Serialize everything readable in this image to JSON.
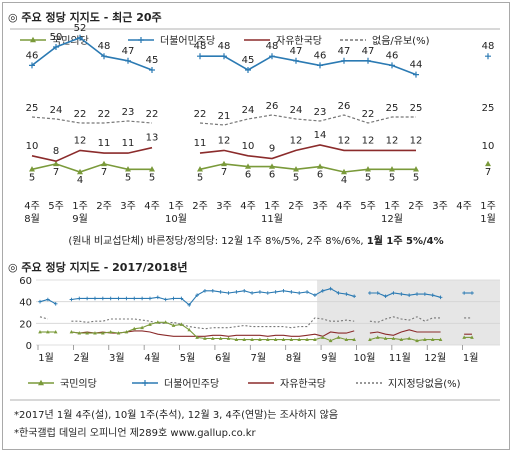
{
  "section1": {
    "title": "◎  주요 정당 지지도 - 최근 20주",
    "note_prefix": "(원내 비교섭단체) 바른정당/정의당: 12월 1주 8%/5%, 2주 8%/6%, ",
    "note_bold": "1월 1주 5%/4%"
  },
  "section2": {
    "title": "◎  주요 정당 지지도 - 2017/2018년"
  },
  "footer": {
    "line1": "*2017년 1월 4주(설), 10월 1주(추석), 12월 3, 4주(연말)는 조사하지 않음",
    "line2": "*한국갤럽 데일리 오피니언 제289호 www.gallup.co.kr"
  },
  "chart_data": [
    {
      "type": "line",
      "title": "주요 정당 지지도 - 최근 20주",
      "categories_top": [
        "4주",
        "5주",
        "1주",
        "2주",
        "3주",
        "4주",
        "1주",
        "2주",
        "3주",
        "4주",
        "1주",
        "2주",
        "3주",
        "4주",
        "5주",
        "1주",
        "2주",
        "3주",
        "4주",
        "1주"
      ],
      "categories_bottom": [
        "8월",
        "",
        "9월",
        "",
        "",
        "",
        "10월",
        "",
        "",
        "",
        "11월",
        "",
        "",
        "",
        "",
        "12월",
        "",
        "",
        "",
        "1월"
      ],
      "series": [
        {
          "name": "국민의당",
          "color": "#7a9a3a",
          "marker": "triangle",
          "values": [
            5,
            7,
            4,
            7,
            5,
            5,
            null,
            5,
            7,
            6,
            6,
            5,
            6,
            4,
            5,
            5,
            5,
            null,
            null,
            7
          ]
        },
        {
          "name": "더불어민주당",
          "color": "#2b7ab3",
          "marker": "plus",
          "values": [
            46,
            50,
            52,
            48,
            47,
            45,
            null,
            48,
            48,
            45,
            48,
            47,
            46,
            47,
            47,
            46,
            44,
            null,
            null,
            48
          ]
        },
        {
          "name": "자유한국당",
          "color": "#8b2b2b",
          "marker": "none",
          "values": [
            10,
            8,
            12,
            11,
            11,
            13,
            null,
            11,
            12,
            10,
            9,
            12,
            14,
            12,
            12,
            12,
            12,
            null,
            null,
            10
          ]
        },
        {
          "name": "없음/유보(%)",
          "color": "#777777",
          "marker": "dashed",
          "values": [
            25,
            24,
            22,
            22,
            23,
            22,
            null,
            22,
            21,
            24,
            26,
            24,
            23,
            26,
            22,
            25,
            25,
            null,
            null,
            25
          ]
        }
      ]
    },
    {
      "type": "line",
      "title": "주요 정당 지지도 - 2017/2018년",
      "y_ticks": [
        "60",
        "40",
        "20",
        "0"
      ],
      "ylim": [
        0,
        60
      ],
      "x_labels": [
        "1월",
        "2월",
        "3월",
        "4월",
        "5월",
        "6월",
        "7월",
        "8월",
        "9월",
        "10월",
        "11월",
        "12월",
        "1월"
      ],
      "shaded_from_month_index": 8,
      "legend": [
        {
          "name": "국민의당",
          "color": "#7a9a3a",
          "marker": "triangle"
        },
        {
          "name": "더불어민주당",
          "color": "#2b7ab3",
          "marker": "plus"
        },
        {
          "name": "자유한국당",
          "color": "#8b2b2b",
          "marker": "none"
        },
        {
          "name": "지지정당없음(%)",
          "color": "#777777",
          "marker": "dashed"
        }
      ],
      "series": {
        "minjoo": [
          40,
          42,
          38,
          null,
          42,
          43,
          43,
          43,
          43,
          43,
          43,
          43,
          43,
          43,
          43,
          44,
          42,
          43,
          43,
          37,
          46,
          50,
          50,
          49,
          48,
          49,
          50,
          48,
          49,
          48,
          49,
          50,
          49,
          48,
          49,
          46,
          50,
          52,
          48,
          47,
          45,
          null,
          48,
          48,
          45,
          48,
          47,
          46,
          47,
          47,
          46,
          44,
          null,
          null,
          48,
          48
        ],
        "none": [
          26,
          24,
          null,
          null,
          22,
          22,
          21,
          22,
          22,
          24,
          24,
          24,
          24,
          23,
          22,
          20,
          20,
          21,
          19,
          17,
          16,
          15,
          16,
          16,
          16,
          17,
          18,
          17,
          17,
          17,
          17,
          17,
          16,
          17,
          17,
          25,
          24,
          22,
          22,
          23,
          22,
          null,
          22,
          21,
          24,
          26,
          24,
          23,
          26,
          22,
          25,
          25,
          null,
          null,
          25,
          25
        ],
        "korea": [
          null,
          null,
          null,
          null,
          12,
          11,
          12,
          11,
          12,
          11,
          11,
          12,
          13,
          13,
          12,
          10,
          9,
          8,
          8,
          8,
          8,
          8,
          9,
          9,
          8,
          9,
          9,
          9,
          9,
          8,
          9,
          9,
          8,
          8,
          9,
          10,
          8,
          12,
          11,
          11,
          13,
          null,
          11,
          12,
          10,
          9,
          12,
          14,
          12,
          12,
          12,
          12,
          null,
          null,
          10,
          10
        ],
        "people": [
          12,
          12,
          12,
          null,
          12,
          11,
          11,
          11,
          11,
          12,
          11,
          12,
          15,
          16,
          19,
          21,
          21,
          18,
          19,
          14,
          7,
          6,
          6,
          6,
          6,
          5,
          5,
          5,
          5,
          5,
          5,
          5,
          5,
          5,
          5,
          5,
          7,
          4,
          7,
          5,
          5,
          null,
          5,
          7,
          6,
          6,
          5,
          6,
          4,
          5,
          5,
          5,
          null,
          null,
          7,
          7
        ]
      }
    }
  ]
}
